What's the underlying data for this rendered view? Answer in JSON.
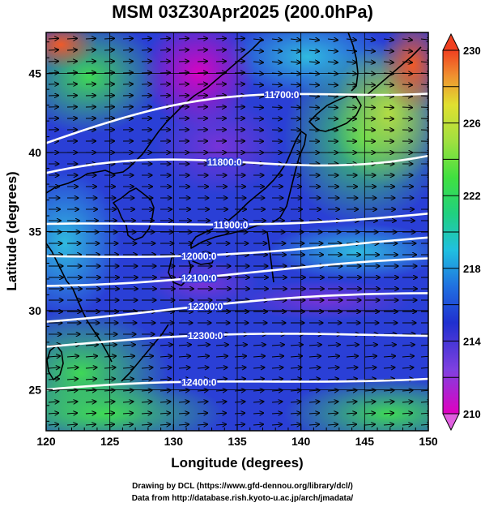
{
  "title": "MSM 03Z30Apr2025 (200.0hPa)",
  "x_axis": {
    "label": "Longitude (degrees)",
    "range": [
      120,
      150
    ],
    "ticks": [
      "120",
      "125",
      "130",
      "135",
      "140",
      "145",
      "150"
    ]
  },
  "y_axis": {
    "label": "Latitude  (degrees)",
    "range": [
      22.4,
      47.6
    ],
    "ticks": [
      "25",
      "30",
      "35",
      "40",
      "45"
    ]
  },
  "colorbar": {
    "range": [
      210,
      230
    ],
    "ticks": [
      "210",
      "214",
      "218",
      "222",
      "226",
      "230"
    ],
    "colors": [
      "#e000c0",
      "#8040e0",
      "#2030d0",
      "#2070e0",
      "#20c0e0",
      "#20d080",
      "#40e040",
      "#a0e040",
      "#e0e030",
      "#f09030",
      "#f04020"
    ]
  },
  "contours": [
    {
      "label": "11700.0",
      "lat_120": 40.6,
      "lat_150": 44.6
    },
    {
      "label": "11800.0",
      "lat_120": 37.8,
      "lat_150": 40.8
    },
    {
      "label": "11900.0",
      "lat_120": 35.2,
      "lat_150": 36.2
    },
    {
      "label": "12000.0",
      "lat_120": 33.4,
      "lat_150": 34.4
    },
    {
      "label": "12100.0",
      "lat_120": 31.8,
      "lat_150": 33.0
    },
    {
      "label": "12200.0",
      "lat_120": 29.6,
      "lat_150": 31.0
    },
    {
      "label": "12300.0",
      "lat_120": 27.8,
      "lat_150": 28.6
    },
    {
      "label": "12400.0",
      "lat_120": 24.8,
      "lat_150": 26.0
    }
  ],
  "credits": [
    "Drawing by DCL (https://www.gfd-dennou.org/library/dcl/)",
    "Data from http://database.rish.kyoto-u.ac.jp/arch/jmadata/"
  ]
}
